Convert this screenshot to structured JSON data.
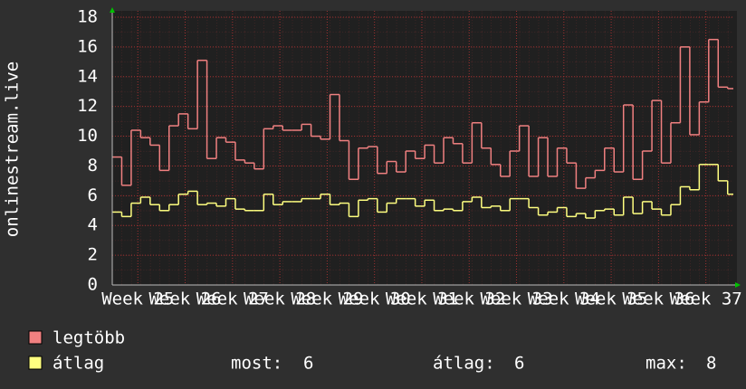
{
  "chart_data": {
    "type": "step-line",
    "ylabel": "onlinestream.live",
    "x": [
      24.46,
      24.66,
      24.86,
      25.06,
      25.26,
      25.46,
      25.66,
      25.86,
      26.06,
      26.26,
      26.46,
      26.66,
      26.86,
      27.06,
      27.26,
      27.46,
      27.66,
      27.86,
      28.06,
      28.26,
      28.46,
      28.66,
      28.86,
      29.06,
      29.26,
      29.46,
      29.66,
      29.86,
      30.06,
      30.26,
      30.46,
      30.66,
      30.86,
      31.06,
      31.26,
      31.46,
      31.66,
      31.86,
      32.06,
      32.26,
      32.46,
      32.66,
      32.86,
      33.06,
      33.26,
      33.46,
      33.66,
      33.86,
      34.06,
      34.26,
      34.46,
      34.66,
      34.86,
      35.06,
      35.26,
      35.46,
      35.66,
      35.86,
      36.06,
      36.26,
      36.46,
      36.66,
      36.86,
      37.06,
      37.26,
      37.46
    ],
    "series": [
      {
        "name": "legtöbb",
        "color": "#f08080",
        "values": [
          8.6,
          6.7,
          10.4,
          9.9,
          9.4,
          7.7,
          10.7,
          11.5,
          10.5,
          15.1,
          8.5,
          9.9,
          9.6,
          8.4,
          8.2,
          7.8,
          10.5,
          10.7,
          10.4,
          10.4,
          10.8,
          10.0,
          9.8,
          12.8,
          9.7,
          7.1,
          9.2,
          9.3,
          7.5,
          8.3,
          7.6,
          9.0,
          8.5,
          9.4,
          8.2,
          9.9,
          9.5,
          8.2,
          10.9,
          9.2,
          8.1,
          7.3,
          9.0,
          10.7,
          7.3,
          9.9,
          7.3,
          9.2,
          8.2,
          6.5,
          7.2,
          7.7,
          9.2,
          7.6,
          12.1,
          7.1,
          9.0,
          12.4,
          8.2,
          10.9,
          16.0,
          10.1,
          12.3,
          16.5,
          13.3,
          13.2
        ]
      },
      {
        "name": "átlag",
        "color": "#ffff80",
        "values": [
          4.9,
          4.6,
          5.5,
          5.9,
          5.4,
          5.0,
          5.4,
          6.1,
          6.3,
          5.4,
          5.5,
          5.3,
          5.8,
          5.1,
          5.0,
          5.0,
          6.1,
          5.4,
          5.6,
          5.6,
          5.8,
          5.8,
          6.1,
          5.4,
          5.5,
          4.6,
          5.7,
          5.8,
          4.9,
          5.5,
          5.8,
          5.8,
          5.3,
          5.7,
          5.0,
          5.1,
          5.0,
          5.6,
          5.9,
          5.2,
          5.3,
          5.0,
          5.8,
          5.8,
          5.2,
          4.7,
          4.9,
          5.2,
          4.6,
          4.8,
          4.5,
          5.0,
          5.1,
          4.7,
          5.9,
          4.8,
          5.6,
          5.1,
          4.7,
          5.4,
          6.6,
          6.4,
          8.1,
          8.1,
          7.0,
          6.1
        ]
      }
    ],
    "xlim": [
      24.46,
      37.58
    ],
    "xticks": [
      {
        "value": 25,
        "label": "Week 25"
      },
      {
        "value": 26,
        "label": "Week 26"
      },
      {
        "value": 27,
        "label": "Week 27"
      },
      {
        "value": 28,
        "label": "Week 28"
      },
      {
        "value": 29,
        "label": "Week 29"
      },
      {
        "value": 30,
        "label": "Week 30"
      },
      {
        "value": 31,
        "label": "Week 31"
      },
      {
        "value": 32,
        "label": "Week 32"
      },
      {
        "value": 33,
        "label": "Week 33"
      },
      {
        "value": 34,
        "label": "Week 34"
      },
      {
        "value": 35,
        "label": "Week 35"
      },
      {
        "value": 36,
        "label": "Week 36"
      },
      {
        "value": 37,
        "label": "Week 37"
      }
    ],
    "ylim": [
      0,
      18
    ],
    "yticks": [
      0,
      2,
      4,
      6,
      8,
      10,
      12,
      14,
      16,
      18
    ],
    "grid": true,
    "stats": [
      {
        "label": "most:",
        "value": 6
      },
      {
        "label": "átlag:",
        "value": 6
      },
      {
        "label": "max:",
        "value": 8
      }
    ]
  }
}
